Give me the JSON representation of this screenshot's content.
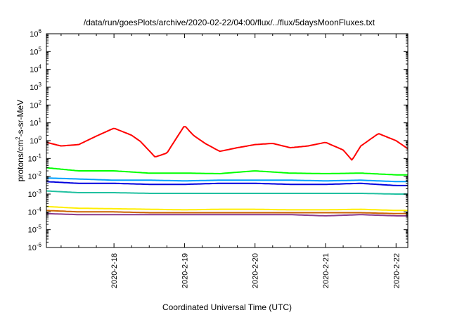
{
  "chart_data": {
    "type": "line",
    "title": "/data/run/goesPlots/archive/2020-02-22/04:00/flux/../flux/5daysMoonFluxes.txt",
    "xlabel": "Coordinated Universal Time (UTC)",
    "ylabel": "protons/cm2-s-sr-MeV",
    "ylabel_parts": {
      "base": "protons/cm",
      "sup": "2",
      "rest": "-s-sr-MeV"
    },
    "y_scale": "log",
    "ylim": [
      1e-06,
      1000000
    ],
    "y_ticks": [
      {
        "base": "10",
        "exp": "-6"
      },
      {
        "base": "10",
        "exp": "-5"
      },
      {
        "base": "10",
        "exp": "-4"
      },
      {
        "base": "10",
        "exp": "-3"
      },
      {
        "base": "10",
        "exp": "-2"
      },
      {
        "base": "10",
        "exp": "-1"
      },
      {
        "base": "10",
        "exp": "0"
      },
      {
        "base": "10",
        "exp": "1"
      },
      {
        "base": "10",
        "exp": "2"
      },
      {
        "base": "10",
        "exp": "3"
      },
      {
        "base": "10",
        "exp": "4"
      },
      {
        "base": "10",
        "exp": "5"
      },
      {
        "base": "10",
        "exp": "6"
      }
    ],
    "xlim": [
      "2020-02-17T01:00",
      "2020-02-22T04:00"
    ],
    "x_ticks": [
      "2020-2-18",
      "2020-2-19",
      "2020-2-20",
      "2020-2-21",
      "2020-2-22"
    ],
    "grid": false,
    "legend": "none",
    "series": [
      {
        "color": "#ff0000",
        "x": [
          "2020-02-17T01:00",
          "2020-02-17T06:00",
          "2020-02-17T12:00",
          "2020-02-17T18:00",
          "2020-02-18T00:00",
          "2020-02-18T06:00",
          "2020-02-18T09:00",
          "2020-02-18T14:00",
          "2020-02-18T18:00",
          "2020-02-19T00:00",
          "2020-02-19T03:00",
          "2020-02-19T07:00",
          "2020-02-19T12:00",
          "2020-02-19T18:00",
          "2020-02-20T00:00",
          "2020-02-20T06:00",
          "2020-02-20T12:00",
          "2020-02-20T18:00",
          "2020-02-21T00:00",
          "2020-02-21T06:00",
          "2020-02-21T09:00",
          "2020-02-21T12:00",
          "2020-02-21T18:00",
          "2020-02-22T00:00",
          "2020-02-22T04:00"
        ],
        "y": [
          0.8,
          0.5,
          0.6,
          1.8,
          5,
          2,
          0.9,
          0.12,
          0.2,
          7,
          2,
          0.7,
          0.25,
          0.4,
          0.6,
          0.7,
          0.4,
          0.5,
          0.8,
          0.3,
          0.08,
          0.5,
          2.5,
          1.0,
          0.35
        ]
      },
      {
        "color": "#00ff00",
        "x": [
          "2020-02-17T01:00",
          "2020-02-17T12:00",
          "2020-02-18T00:00",
          "2020-02-18T12:00",
          "2020-02-19T00:00",
          "2020-02-19T12:00",
          "2020-02-20T00:00",
          "2020-02-20T12:00",
          "2020-02-21T00:00",
          "2020-02-21T12:00",
          "2020-02-22T00:00",
          "2020-02-22T04:00"
        ],
        "y": [
          0.03,
          0.02,
          0.02,
          0.015,
          0.015,
          0.014,
          0.02,
          0.015,
          0.014,
          0.015,
          0.012,
          0.012
        ]
      },
      {
        "color": "#00a0ff",
        "x": [
          "2020-02-17T01:00",
          "2020-02-17T12:00",
          "2020-02-18T00:00",
          "2020-02-18T12:00",
          "2020-02-19T00:00",
          "2020-02-19T12:00",
          "2020-02-20T00:00",
          "2020-02-20T12:00",
          "2020-02-21T00:00",
          "2020-02-21T12:00",
          "2020-02-22T00:00",
          "2020-02-22T04:00"
        ],
        "y": [
          0.008,
          0.007,
          0.006,
          0.006,
          0.0055,
          0.006,
          0.006,
          0.006,
          0.0055,
          0.006,
          0.005,
          0.005
        ]
      },
      {
        "color": "#0000dd",
        "x": [
          "2020-02-17T01:00",
          "2020-02-17T12:00",
          "2020-02-18T00:00",
          "2020-02-18T12:00",
          "2020-02-19T00:00",
          "2020-02-19T12:00",
          "2020-02-20T00:00",
          "2020-02-20T12:00",
          "2020-02-21T00:00",
          "2020-02-21T12:00",
          "2020-02-22T00:00",
          "2020-02-22T04:00"
        ],
        "y": [
          0.005,
          0.004,
          0.004,
          0.0035,
          0.0035,
          0.004,
          0.004,
          0.0035,
          0.0035,
          0.004,
          0.003,
          0.003
        ]
      },
      {
        "color": "#20c0a0",
        "x": [
          "2020-02-17T01:00",
          "2020-02-17T12:00",
          "2020-02-18T00:00",
          "2020-02-18T12:00",
          "2020-02-19T00:00",
          "2020-02-19T12:00",
          "2020-02-20T00:00",
          "2020-02-20T12:00",
          "2020-02-21T00:00",
          "2020-02-21T12:00",
          "2020-02-22T00:00",
          "2020-02-22T04:00"
        ],
        "y": [
          0.0015,
          0.0012,
          0.0012,
          0.0011,
          0.0011,
          0.0011,
          0.0011,
          0.0011,
          0.0011,
          0.0011,
          0.001,
          0.001
        ]
      },
      {
        "color": "#ffee00",
        "x": [
          "2020-02-17T01:00",
          "2020-02-17T12:00",
          "2020-02-18T00:00",
          "2020-02-18T12:00",
          "2020-02-19T00:00",
          "2020-02-19T12:00",
          "2020-02-20T00:00",
          "2020-02-20T12:00",
          "2020-02-21T00:00",
          "2020-02-21T12:00",
          "2020-02-22T00:00",
          "2020-02-22T04:00"
        ],
        "y": [
          0.0002,
          0.00016,
          0.00015,
          0.00014,
          0.00013,
          0.00014,
          0.00014,
          0.00013,
          0.00013,
          0.00014,
          0.00012,
          0.00012
        ]
      },
      {
        "color": "#cc6600",
        "x": [
          "2020-02-17T01:00",
          "2020-02-17T12:00",
          "2020-02-18T00:00",
          "2020-02-18T12:00",
          "2020-02-19T00:00",
          "2020-02-19T12:00",
          "2020-02-20T00:00",
          "2020-02-20T12:00",
          "2020-02-21T00:00",
          "2020-02-21T12:00",
          "2020-02-22T00:00",
          "2020-02-22T04:00"
        ],
        "y": [
          0.00012,
          0.0001,
          0.0001,
          9e-05,
          9e-05,
          9e-05,
          9e-05,
          9e-05,
          9e-05,
          9e-05,
          8e-05,
          8e-05
        ]
      },
      {
        "color": "#8b3a8b",
        "x": [
          "2020-02-17T01:00",
          "2020-02-17T12:00",
          "2020-02-18T00:00",
          "2020-02-18T12:00",
          "2020-02-19T00:00",
          "2020-02-19T12:00",
          "2020-02-20T00:00",
          "2020-02-20T12:00",
          "2020-02-21T00:00",
          "2020-02-21T12:00",
          "2020-02-22T00:00",
          "2020-02-22T04:00"
        ],
        "y": [
          8e-05,
          7e-05,
          7e-05,
          7e-05,
          7e-05,
          7e-05,
          7e-05,
          7e-05,
          6e-05,
          7e-05,
          6e-05,
          6e-05
        ]
      }
    ]
  }
}
